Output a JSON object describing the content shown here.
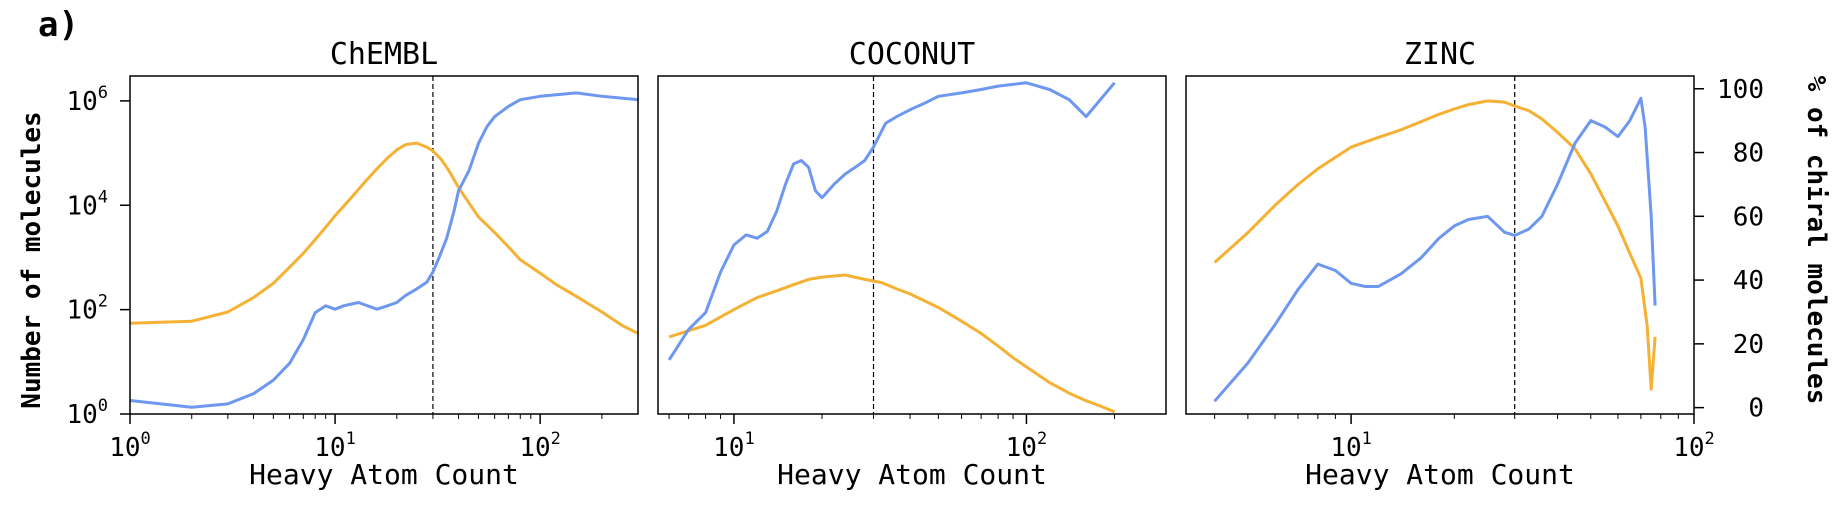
{
  "figure": {
    "panel_label": "a)",
    "left_axis_label": "Number of molecules",
    "right_axis_label": "% of chiral molecules",
    "colors": {
      "count": "#F5B133",
      "chiral": "#6E97EF"
    }
  },
  "chart_data": [
    {
      "type": "line",
      "title": "ChEMBL",
      "xlabel": "Heavy Atom Count",
      "xscale": "log",
      "xlim": [
        1,
        300
      ],
      "ylim_left": [
        1,
        3000000
      ],
      "ylim_right": [
        0,
        100
      ],
      "ylim_right_scale": "linear",
      "threshold_line_x": 30,
      "x_ticks": [
        {
          "base": "10",
          "exp": "0",
          "value": 1
        },
        {
          "base": "10",
          "exp": "1",
          "value": 10
        },
        {
          "base": "10",
          "exp": "2",
          "value": 100
        }
      ],
      "series": [
        {
          "name": "Number of molecules",
          "axis": "left",
          "color": "#F5B133",
          "x": [
            1,
            2,
            3,
            4,
            5,
            6,
            7,
            8,
            9,
            10,
            12,
            14,
            16,
            18,
            20,
            22,
            25,
            28,
            30,
            33,
            36,
            40,
            45,
            50,
            60,
            70,
            80,
            100,
            120,
            150,
            200,
            250,
            300
          ],
          "y": [
            55,
            60,
            90,
            170,
            320,
            650,
            1200,
            2200,
            3800,
            6300,
            14000,
            28000,
            50000,
            80000,
            115000,
            145000,
            155000,
            130000,
            110000,
            75000,
            45000,
            22000,
            11000,
            6000,
            3000,
            1600,
            900,
            500,
            300,
            180,
            90,
            50,
            35
          ]
        },
        {
          "name": "% of chiral molecules",
          "axis": "right",
          "color": "#6E97EF",
          "x": [
            1,
            2,
            3,
            4,
            5,
            6,
            7,
            8,
            9,
            10,
            11,
            13,
            16,
            18,
            20,
            22,
            25,
            28,
            30,
            32,
            35,
            38,
            40,
            45,
            50,
            55,
            60,
            70,
            80,
            100,
            150,
            200,
            300
          ],
          "y": [
            4,
            2,
            3,
            6,
            10,
            15,
            22,
            30,
            32,
            31,
            32,
            33,
            31,
            32,
            33,
            35,
            37,
            39,
            42,
            46,
            52,
            60,
            66,
            72,
            80,
            85,
            88,
            91,
            93,
            94,
            95,
            94,
            93
          ]
        }
      ]
    },
    {
      "type": "line",
      "title": "COCONUT",
      "xlabel": "Heavy Atom Count",
      "xscale": "log",
      "xlim": [
        5.5,
        300
      ],
      "ylim_left": [
        1,
        3000000
      ],
      "ylim_right": [
        0,
        100
      ],
      "ylim_right_scale": "linear",
      "threshold_line_x": 30,
      "x_ticks": [
        {
          "base": "10",
          "exp": "1",
          "value": 10
        },
        {
          "base": "10",
          "exp": "2",
          "value": 100
        }
      ],
      "series": [
        {
          "name": "Number of molecules",
          "axis": "left",
          "color": "#F5B133",
          "x": [
            6,
            8,
            10,
            12,
            14,
            16,
            18,
            20,
            24,
            28,
            32,
            36,
            40,
            50,
            60,
            70,
            80,
            90,
            100,
            120,
            140,
            160,
            180,
            200
          ],
          "y": [
            30,
            50,
            100,
            170,
            230,
            300,
            380,
            420,
            460,
            380,
            330,
            250,
            200,
            110,
            60,
            35,
            20,
            12,
            8,
            4,
            2.5,
            1.8,
            1.4,
            1.1
          ]
        },
        {
          "name": "% of chiral molecules",
          "axis": "right",
          "color": "#6E97EF",
          "x": [
            6,
            7,
            8,
            9,
            10,
            11,
            12,
            13,
            14,
            15,
            16,
            17,
            18,
            19,
            20,
            22,
            24,
            26,
            28,
            30,
            33,
            36,
            40,
            45,
            50,
            60,
            70,
            80,
            100,
            120,
            140,
            160,
            200
          ],
          "y": [
            16,
            25,
            30,
            42,
            50,
            53,
            52,
            54,
            60,
            68,
            74,
            75,
            73,
            66,
            64,
            68,
            71,
            73,
            75,
            79,
            86,
            88,
            90,
            92,
            94,
            95,
            96,
            97,
            98,
            96,
            93,
            88,
            98
          ]
        }
      ]
    },
    {
      "type": "line",
      "title": "ZINC",
      "xlabel": "Heavy Atom Count",
      "xscale": "log",
      "xlim": [
        3.3,
        100
      ],
      "ylim_left": [
        1,
        3000000
      ],
      "ylim_right": [
        -2,
        104
      ],
      "ylim_right_scale": "linear",
      "threshold_line_x": 30,
      "x_ticks": [
        {
          "base": "10",
          "exp": "1",
          "value": 10
        },
        {
          "base": "10",
          "exp": "2",
          "value": 100
        }
      ],
      "y_right_ticks": [
        0,
        20,
        40,
        60,
        80,
        100
      ],
      "series": [
        {
          "name": "Number of molecules",
          "axis": "left",
          "color": "#F5B133",
          "x": [
            4,
            5,
            6,
            7,
            8,
            10,
            12,
            14,
            16,
            18,
            20,
            22,
            25,
            28,
            30,
            33,
            36,
            40,
            45,
            50,
            55,
            60,
            65,
            70,
            73,
            75,
            77
          ],
          "y": [
            800,
            3000,
            10000,
            25000,
            50000,
            130000,
            200000,
            280000,
            400000,
            550000,
            700000,
            850000,
            1000000,
            950000,
            800000,
            650000,
            450000,
            250000,
            120000,
            40000,
            12000,
            4000,
            1200,
            400,
            50,
            3,
            30
          ]
        },
        {
          "name": "% of chiral molecules",
          "axis": "right",
          "color": "#6E97EF",
          "x": [
            4,
            5,
            6,
            7,
            8,
            9,
            10,
            11,
            12,
            14,
            16,
            18,
            20,
            22,
            25,
            28,
            30,
            33,
            36,
            40,
            45,
            50,
            55,
            60,
            65,
            70,
            72,
            75,
            77
          ],
          "y": [
            2,
            14,
            26,
            37,
            45,
            43,
            39,
            38,
            38,
            42,
            47,
            53,
            57,
            59,
            60,
            55,
            54,
            56,
            60,
            70,
            83,
            90,
            88,
            85,
            90,
            97,
            88,
            60,
            32
          ]
        }
      ]
    }
  ]
}
